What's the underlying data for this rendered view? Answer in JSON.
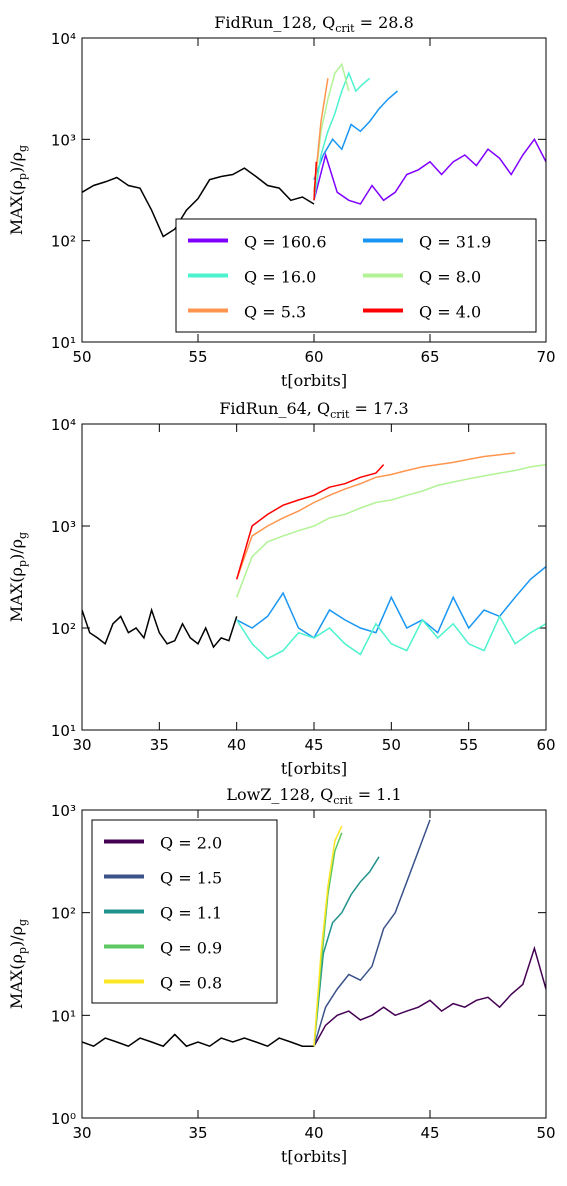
{
  "chart_data": [
    {
      "type": "line",
      "title": [
        "FidRun_128, Q",
        "crit",
        " = 28.8"
      ],
      "xlabel": "t[orbits]",
      "ylabel": [
        "MAX(ρ",
        "p",
        ")/ρ",
        "g"
      ],
      "ylog": true,
      "xlim": [
        50,
        70
      ],
      "xticks": [
        50,
        55,
        60,
        65,
        70
      ],
      "ylim": [
        10,
        10000
      ],
      "yticks": [
        {
          "value": 10,
          "label": "10¹"
        },
        {
          "value": 100,
          "label": "10²"
        },
        {
          "value": 1000,
          "label": "10³"
        },
        {
          "value": 10000,
          "label": "10⁴"
        }
      ],
      "legend": "lower right",
      "legend_columns": 2,
      "series": [
        {
          "color": "#000000",
          "x": [
            50,
            50.5,
            51,
            51.5,
            52,
            52.5,
            53,
            53.5,
            54,
            54.5,
            55,
            55.5,
            56,
            56.5,
            57,
            57.5,
            58,
            58.5,
            59,
            59.5,
            60
          ],
          "values": [
            300,
            350,
            380,
            420,
            350,
            330,
            200,
            110,
            130,
            200,
            260,
            400,
            430,
            450,
            520,
            430,
            350,
            330,
            250,
            270,
            230
          ]
        },
        {
          "name": "Q = 160.6",
          "color": "#8000ff",
          "x": [
            60,
            60.5,
            61,
            61.5,
            62,
            62.5,
            63,
            63.5,
            64,
            64.5,
            65,
            65.5,
            66,
            66.5,
            67,
            67.5,
            68,
            68.5,
            69,
            69.5,
            70
          ],
          "values": [
            250,
            700,
            300,
            250,
            230,
            350,
            250,
            300,
            450,
            500,
            600,
            450,
            600,
            700,
            550,
            800,
            650,
            450,
            700,
            1000,
            600
          ]
        },
        {
          "name": "Q = 31.9",
          "color": "#1996f3",
          "x": [
            60,
            60.4,
            60.8,
            61.2,
            61.6,
            62,
            62.4,
            62.8,
            63.2,
            63.6
          ],
          "values": [
            400,
            700,
            1000,
            800,
            1400,
            1200,
            1500,
            2000,
            2500,
            3000
          ]
        },
        {
          "name": "Q = 16.0",
          "color": "#4df3ce",
          "x": [
            60,
            60.3,
            60.6,
            60.9,
            61.2,
            61.5,
            61.8,
            62.1,
            62.4
          ],
          "values": [
            250,
            700,
            1200,
            1800,
            3000,
            4500,
            3000,
            3500,
            4000
          ]
        },
        {
          "name": "Q = 8.0",
          "color": "#b2f396",
          "x": [
            60,
            60.3,
            60.6,
            60.9,
            61.2,
            61.5
          ],
          "values": [
            300,
            1200,
            2500,
            4500,
            5500,
            3000
          ]
        },
        {
          "name": "Q = 5.3",
          "color": "#ff954e",
          "x": [
            60,
            60.3,
            60.6
          ],
          "values": [
            300,
            1500,
            4000
          ]
        },
        {
          "name": "Q = 4.0",
          "color": "#ff0000",
          "x": [
            60,
            60.1
          ],
          "values": [
            250,
            600
          ]
        }
      ]
    },
    {
      "type": "line",
      "title": [
        "FidRun_64, Q",
        "crit",
        " = 17.3"
      ],
      "xlabel": "t[orbits]",
      "ylabel": [
        "MAX(ρ",
        "p",
        ")/ρ",
        "g"
      ],
      "ylog": true,
      "xlim": [
        30,
        60
      ],
      "xticks": [
        30,
        35,
        40,
        45,
        50,
        55,
        60
      ],
      "ylim": [
        10,
        10000
      ],
      "yticks": [
        {
          "value": 10,
          "label": "10¹"
        },
        {
          "value": 100,
          "label": "10²"
        },
        {
          "value": 1000,
          "label": "10³"
        },
        {
          "value": 10000,
          "label": "10⁴"
        }
      ],
      "series": [
        {
          "color": "#000000",
          "x": [
            30,
            30.5,
            31,
            31.5,
            32,
            32.5,
            33,
            33.5,
            34,
            34.5,
            35,
            35.5,
            36,
            36.5,
            37,
            37.5,
            38,
            38.5,
            39,
            39.5,
            40
          ],
          "values": [
            150,
            90,
            80,
            70,
            110,
            130,
            90,
            100,
            80,
            150,
            90,
            70,
            75,
            110,
            80,
            70,
            100,
            65,
            80,
            75,
            130
          ]
        },
        {
          "color": "#1996f3",
          "x": [
            40,
            41,
            42,
            43,
            44,
            45,
            46,
            47,
            48,
            49,
            50,
            51,
            52,
            53,
            54,
            55,
            56,
            57,
            58,
            59,
            60
          ],
          "values": [
            120,
            100,
            130,
            220,
            100,
            80,
            150,
            120,
            100,
            90,
            200,
            100,
            120,
            90,
            200,
            100,
            150,
            130,
            200,
            300,
            400
          ]
        },
        {
          "color": "#4df3ce",
          "x": [
            40,
            41,
            42,
            43,
            44,
            45,
            46,
            47,
            48,
            49,
            50,
            51,
            52,
            53,
            54,
            55,
            56,
            57,
            58,
            59,
            60
          ],
          "values": [
            120,
            70,
            50,
            60,
            90,
            80,
            100,
            70,
            55,
            110,
            70,
            60,
            120,
            80,
            110,
            70,
            60,
            130,
            70,
            90,
            110
          ]
        },
        {
          "color": "#b2f396",
          "x": [
            40,
            41,
            42,
            43,
            44,
            45,
            46,
            47,
            48,
            49,
            50,
            51,
            52,
            53,
            54,
            55,
            56,
            57,
            58,
            59,
            60
          ],
          "values": [
            200,
            500,
            700,
            800,
            900,
            1000,
            1200,
            1300,
            1500,
            1700,
            1800,
            2000,
            2200,
            2500,
            2700,
            2900,
            3100,
            3300,
            3500,
            3800,
            4000
          ]
        },
        {
          "color": "#ff954e",
          "x": [
            40,
            41,
            42,
            43,
            44,
            45,
            46,
            47,
            48,
            49,
            50,
            51,
            52,
            53,
            54,
            55,
            56,
            57,
            58
          ],
          "values": [
            300,
            800,
            1000,
            1200,
            1400,
            1700,
            2000,
            2300,
            2600,
            3000,
            3200,
            3500,
            3800,
            4000,
            4200,
            4500,
            4800,
            5000,
            5200
          ]
        },
        {
          "color": "#ff0000",
          "x": [
            40,
            41,
            42,
            43,
            44,
            45,
            46,
            47,
            48,
            49,
            49.5
          ],
          "values": [
            300,
            1000,
            1300,
            1600,
            1800,
            2000,
            2400,
            2600,
            3000,
            3300,
            4000
          ]
        }
      ]
    },
    {
      "type": "line",
      "title": [
        "LowZ_128, Q",
        "crit",
        " = 1.1"
      ],
      "xlabel": "t[orbits]",
      "ylabel": [
        "MAX(ρ",
        "p",
        ")/ρ",
        "g"
      ],
      "ylog": true,
      "xlim": [
        30,
        50
      ],
      "xticks": [
        30,
        35,
        40,
        45,
        50
      ],
      "ylim": [
        1,
        1000
      ],
      "yticks": [
        {
          "value": 1,
          "label": "10⁰"
        },
        {
          "value": 10,
          "label": "10¹"
        },
        {
          "value": 100,
          "label": "10²"
        },
        {
          "value": 1000,
          "label": "10³"
        }
      ],
      "legend": "upper left",
      "legend_columns": 1,
      "series": [
        {
          "color": "#000000",
          "x": [
            30,
            30.5,
            31,
            31.5,
            32,
            32.5,
            33,
            33.5,
            34,
            34.5,
            35,
            35.5,
            36,
            36.5,
            37,
            37.5,
            38,
            38.5,
            39,
            39.5,
            40
          ],
          "values": [
            5.5,
            5,
            6,
            5.5,
            5,
            6,
            5.5,
            5,
            6.5,
            5,
            5.5,
            5,
            6,
            5.5,
            6,
            5.5,
            5,
            6,
            5.5,
            5,
            5
          ]
        },
        {
          "name": "Q = 2.0",
          "color": "#440154",
          "x": [
            40,
            40.5,
            41,
            41.5,
            42,
            42.5,
            43,
            43.5,
            44,
            44.5,
            45,
            45.5,
            46,
            46.5,
            47,
            47.5,
            48,
            48.5,
            49,
            49.5,
            50
          ],
          "values": [
            5,
            8,
            10,
            11,
            9,
            10,
            12,
            10,
            11,
            12,
            14,
            11,
            13,
            12,
            14,
            15,
            12,
            16,
            20,
            45,
            18
          ]
        },
        {
          "name": "Q = 1.5",
          "color": "#3b528b",
          "x": [
            40,
            40.5,
            41,
            41.5,
            42,
            42.5,
            43,
            43.5,
            44,
            44.5,
            45
          ],
          "values": [
            5,
            12,
            18,
            25,
            22,
            30,
            70,
            100,
            200,
            400,
            800
          ]
        },
        {
          "name": "Q = 1.1",
          "color": "#21918c",
          "x": [
            40,
            40.4,
            40.8,
            41.2,
            41.6,
            42,
            42.4,
            42.8
          ],
          "values": [
            5,
            40,
            80,
            100,
            150,
            200,
            250,
            350
          ]
        },
        {
          "name": "Q = 0.9",
          "color": "#5ec962",
          "x": [
            40,
            40.3,
            40.6,
            40.9,
            41.2
          ],
          "values": [
            5,
            30,
            150,
            400,
            600
          ]
        },
        {
          "name": "Q = 0.8",
          "color": "#fde725",
          "x": [
            40,
            40.3,
            40.6,
            40.9,
            41.2
          ],
          "values": [
            5,
            40,
            180,
            500,
            700
          ]
        }
      ]
    }
  ]
}
